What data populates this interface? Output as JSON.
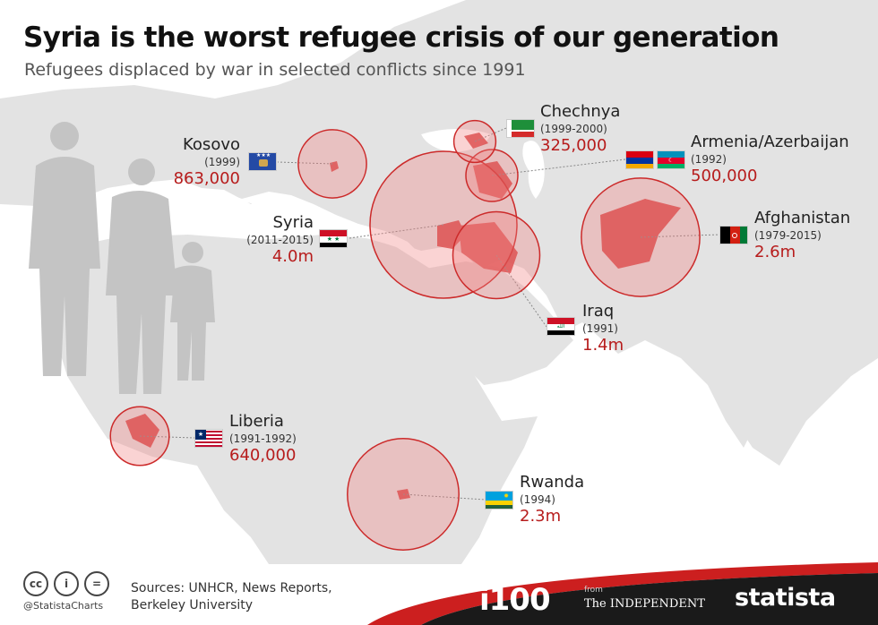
{
  "header": {
    "title": "Syria is the worst refugee crisis of our generation",
    "subtitle": "Refugees displaced by war in selected conflicts since 1991"
  },
  "chart_data": {
    "type": "bubble-map",
    "title": "Syria is the worst refugee crisis of our generation",
    "subtitle": "Refugees displaced by war in selected conflicts since 1991",
    "unit": "refugees",
    "points": [
      {
        "id": "kosovo",
        "name": "Kosovo",
        "period": "(1999)",
        "value": 863000,
        "label": "863,000",
        "flag": "kosovo"
      },
      {
        "id": "chechnya",
        "name": "Chechnya",
        "period": "(1999-2000)",
        "value": 325000,
        "label": "325,000",
        "flag": "chechnya"
      },
      {
        "id": "armenia",
        "name": "Armenia/Azerbaijan",
        "period": "(1992)",
        "value": 500000,
        "label": "500,000",
        "flag": "armenia-azerbaijan"
      },
      {
        "id": "syria",
        "name": "Syria",
        "period": "(2011-2015)",
        "value": 4000000,
        "label": "4.0m",
        "flag": "syria"
      },
      {
        "id": "afghanistan",
        "name": "Afghanistan",
        "period": "(1979-2015)",
        "value": 2600000,
        "label": "2.6m",
        "flag": "afghanistan"
      },
      {
        "id": "iraq",
        "name": "Iraq",
        "period": "(1991)",
        "value": 1400000,
        "label": "1.4m",
        "flag": "iraq"
      },
      {
        "id": "liberia",
        "name": "Liberia",
        "period": "(1991-1992)",
        "value": 640000,
        "label": "640,000",
        "flag": "liberia"
      },
      {
        "id": "rwanda",
        "name": "Rwanda",
        "period": "(1994)",
        "value": 2300000,
        "label": "2.3m",
        "flag": "rwanda"
      }
    ]
  },
  "footer": {
    "license_icons": [
      "cc-icon",
      "attribution-icon",
      "no-derivatives-icon"
    ],
    "license_glyphs": [
      "cc",
      "i",
      "="
    ],
    "handle": "@StatistaCharts",
    "sources_line1": "Sources: UNHCR, News Reports,",
    "sources_line2": "Berkeley University",
    "brand_i100": "i100",
    "brand_from": "from",
    "brand_independent": "The INDEPENDENT",
    "brand_statista": "statista"
  },
  "colors": {
    "bubble_fill": "#f08080",
    "bubble_stroke": "#cc2a2a",
    "value_text": "#b71c1c",
    "land": "#e3e3e3",
    "sea": "#ffffff",
    "footer_dark": "#1a1a1a",
    "footer_red": "#cc1f1f"
  }
}
